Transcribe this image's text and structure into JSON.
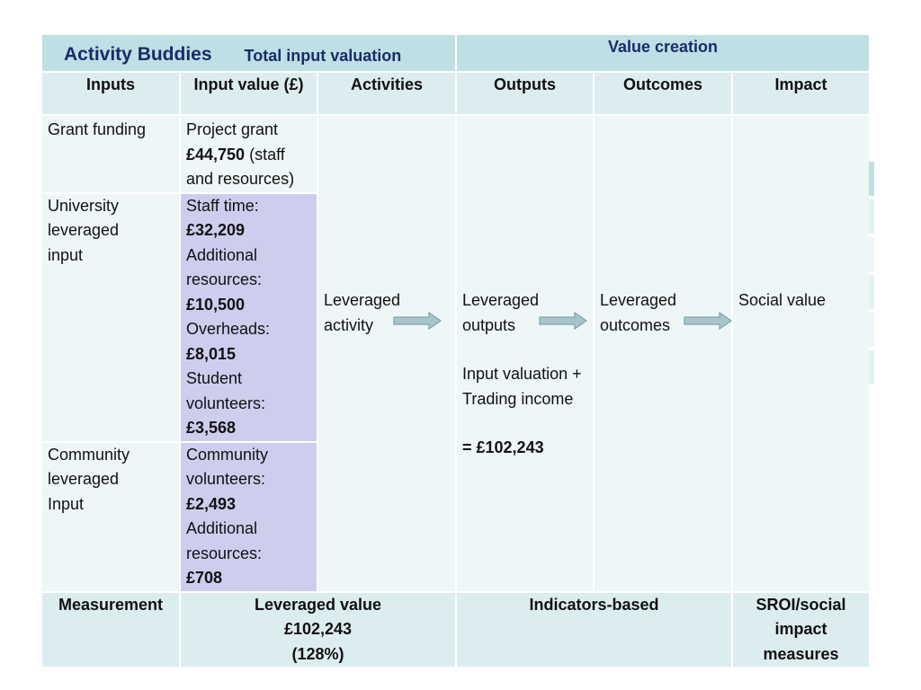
{
  "header": {
    "title": "Activity Buddies",
    "input_valuation": "Total input valuation",
    "value_creation": "Value creation"
  },
  "columns": [
    "Inputs",
    "Input value (£)",
    "Activities",
    "Outputs",
    "Outcomes",
    "Impact"
  ],
  "rows": {
    "grant": {
      "label": "Grant funding",
      "value_line1": "Project grant",
      "value_amount": "£44,750",
      "value_rest": " (staff and resources)"
    },
    "university": {
      "label": "University leveraged input",
      "lines": [
        {
          "text": "Staff time:",
          "bold": false
        },
        {
          "text": "£32,209",
          "bold": true
        },
        {
          "text": "Additional resources:",
          "bold": false
        },
        {
          "text": "£10,500",
          "bold": true
        },
        {
          "text": "Overheads:",
          "bold": false
        },
        {
          "text": "£8,015",
          "bold": true
        },
        {
          "text": "Student volunteers:",
          "bold": false
        },
        {
          "text": "£3,568",
          "bold": true
        }
      ]
    },
    "community": {
      "label": "Community leveraged Input",
      "lines": [
        {
          "text": "Community volunteers:",
          "bold": false
        },
        {
          "text": "£2,493",
          "bold": true
        },
        {
          "text": "Additional resources:",
          "bold": false
        },
        {
          "text": "£708",
          "bold": true
        }
      ]
    }
  },
  "flow": {
    "activity": "Leveraged activity",
    "outputs": "Leveraged outputs",
    "outputs_calc": "Input valuation + Trading income",
    "outputs_total": "= £102,243",
    "outcomes": "Leveraged outcomes",
    "impact": "Social value"
  },
  "measurement": {
    "label": "Measurement",
    "leveraged_line1": "Leveraged value",
    "leveraged_line2": "£102,243",
    "leveraged_line3": "(128%)",
    "indicators": "Indicators-based",
    "sroi": "SROI/social impact measures"
  },
  "colors": {
    "header_top": "#bedfe3",
    "header_sub": "#dcedef",
    "body": "#eef6f7",
    "highlight": "#cfcdee",
    "title_text": "#1a2a6c",
    "arrow": "#8fb3b8"
  }
}
